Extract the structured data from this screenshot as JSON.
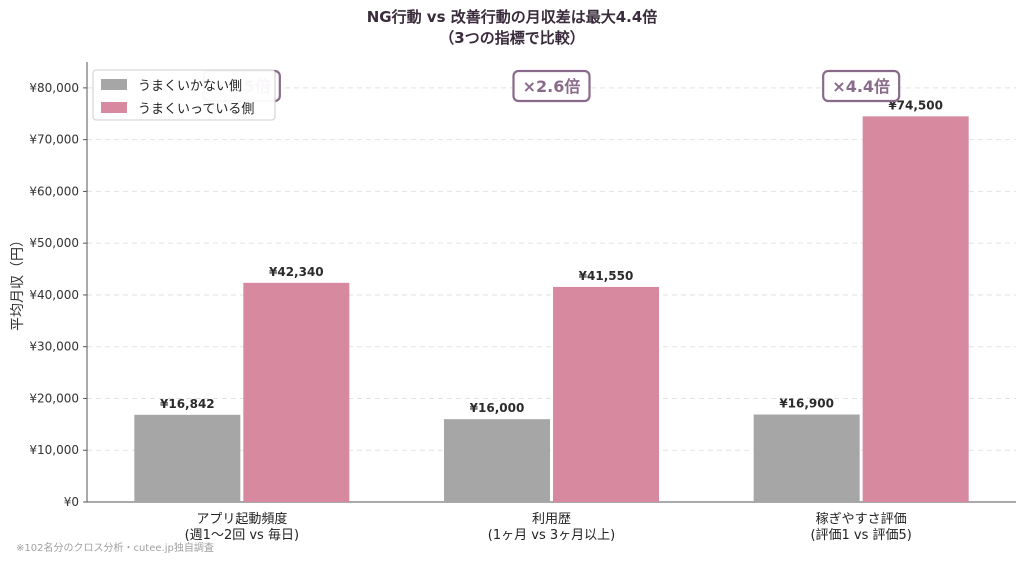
{
  "chart_data": {
    "type": "bar",
    "title": [
      "NG行動 vs 改善行動の月収差は最大4.4倍",
      "（3つの指標で比較）"
    ],
    "ylabel": "平均月収（円）",
    "ylim": [
      0,
      85000
    ],
    "yticks": [
      0,
      10000,
      20000,
      30000,
      40000,
      50000,
      60000,
      70000,
      80000
    ],
    "ytick_labels": [
      "¥0",
      "¥10,000",
      "¥20,000",
      "¥30,000",
      "¥40,000",
      "¥50,000",
      "¥60,000",
      "¥70,000",
      "¥80,000"
    ],
    "categories": [
      [
        "アプリ起動頻度",
        "(週1〜2回 vs 毎日)"
      ],
      [
        "利用歴",
        "(1ヶ月 vs 3ヶ月以上)"
      ],
      [
        "稼ぎやすさ評価",
        "(評価1 vs 評価5)"
      ]
    ],
    "series": [
      {
        "name": "うまくいかない側",
        "color": "#a6a6a6",
        "values": [
          16842,
          16000,
          16900
        ],
        "labels": [
          "¥16,842",
          "¥16,000",
          "¥16,900"
        ]
      },
      {
        "name": "うまくいっている側",
        "color": "#d6899f",
        "values": [
          42340,
          41550,
          74500
        ],
        "labels": [
          "¥42,340",
          "¥41,550",
          "¥74,500"
        ]
      }
    ],
    "annotations": [
      "×2.5倍",
      "×2.6倍",
      "×4.4倍"
    ],
    "grid": "horizontal-dashed",
    "legend": "top-left",
    "footnote": "※102名分のクロス分析・cutee.jp独自調査"
  }
}
